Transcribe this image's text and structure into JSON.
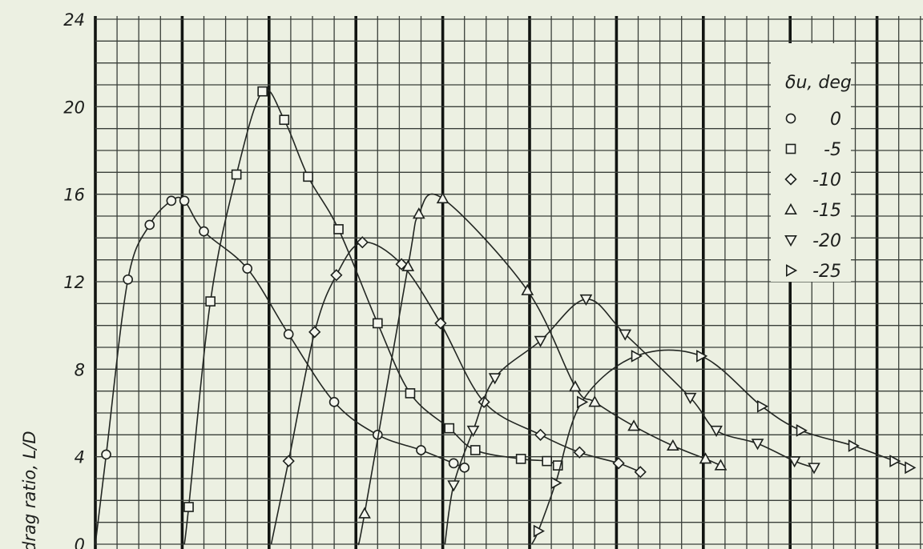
{
  "chart_data": {
    "type": "line",
    "ylabel": "drag ratio, L/D",
    "yticks": [
      "0",
      "4",
      "8",
      "12",
      "16",
      "20",
      "24"
    ],
    "ylim": [
      0,
      24
    ],
    "xlim": [
      0,
      38.5
    ],
    "grid": true,
    "legend": {
      "title": "δu, deg",
      "placement": "top-right"
    },
    "series": [
      {
        "name": "0",
        "marker": "circle",
        "x": [
          0.0,
          0.5,
          1.5,
          2.5,
          3.5,
          4.1,
          5.0,
          7.0,
          8.9,
          11.0,
          13.0,
          15.0,
          16.5,
          17.0
        ],
        "y": [
          0.0,
          4.1,
          12.1,
          14.6,
          15.7,
          15.7,
          14.3,
          12.6,
          9.6,
          6.5,
          5.0,
          4.3,
          3.7,
          3.5
        ]
      },
      {
        "name": "-5",
        "marker": "square",
        "x": [
          4.1,
          4.3,
          5.3,
          6.5,
          7.7,
          8.7,
          9.8,
          11.2,
          13.0,
          14.5,
          16.3,
          17.5,
          19.6,
          20.8,
          21.3
        ],
        "y": [
          0.0,
          1.7,
          11.1,
          16.9,
          20.7,
          19.4,
          16.8,
          14.4,
          10.1,
          6.9,
          5.3,
          4.3,
          3.9,
          3.8,
          3.6
        ]
      },
      {
        "name": "-10",
        "marker": "diamond",
        "x": [
          8.1,
          8.9,
          10.1,
          11.1,
          12.3,
          14.1,
          15.9,
          17.9,
          20.5,
          22.3,
          24.1,
          25.1
        ],
        "y": [
          0.0,
          3.8,
          9.7,
          12.3,
          13.8,
          12.8,
          10.1,
          6.5,
          5.0,
          4.2,
          3.7,
          3.3
        ]
      },
      {
        "name": "-15",
        "marker": "triangle-up",
        "x": [
          12.1,
          12.4,
          14.4,
          14.9,
          16.0,
          19.9,
          22.1,
          23.0,
          24.8,
          26.6,
          28.1,
          28.8
        ],
        "y": [
          0.0,
          1.4,
          12.7,
          15.1,
          15.8,
          11.6,
          7.2,
          6.5,
          5.4,
          4.5,
          3.9,
          3.6
        ]
      },
      {
        "name": "-20",
        "marker": "triangle-down",
        "x": [
          16.1,
          16.5,
          17.4,
          18.4,
          20.5,
          22.6,
          24.4,
          27.4,
          28.6,
          30.5,
          32.2,
          33.1
        ],
        "y": [
          0.0,
          2.7,
          5.2,
          7.6,
          9.3,
          11.2,
          9.6,
          6.7,
          5.2,
          4.6,
          3.8,
          3.5
        ]
      },
      {
        "name": "-25",
        "marker": "triangle-right",
        "x": [
          20.1,
          20.4,
          21.2,
          22.4,
          24.9,
          27.9,
          30.7,
          32.5,
          34.9,
          36.8,
          37.5
        ],
        "y": [
          0.0,
          0.6,
          2.8,
          6.5,
          8.6,
          8.6,
          6.3,
          5.2,
          4.5,
          3.8,
          3.5
        ]
      }
    ]
  }
}
